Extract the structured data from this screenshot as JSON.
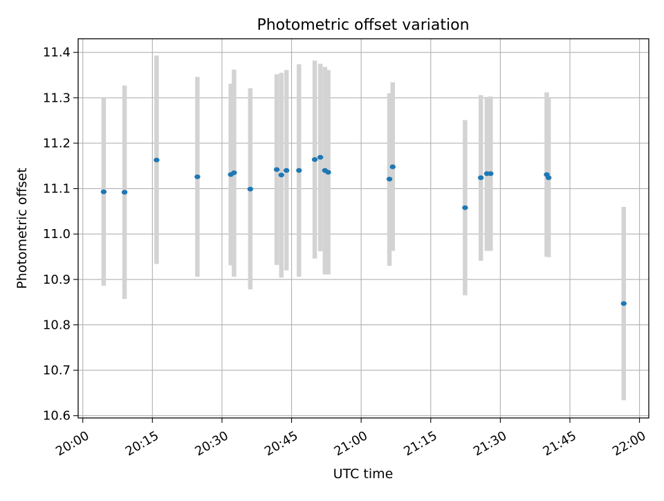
{
  "chart_data": {
    "type": "scatter",
    "title": "Photometric offset variation",
    "xlabel": "UTC time",
    "ylabel": "Photometric offset",
    "xlim": [
      "19:59",
      "22:02"
    ],
    "ylim": [
      10.595,
      11.43
    ],
    "x_ticks": [
      "20:00",
      "20:15",
      "20:30",
      "20:45",
      "21:00",
      "21:15",
      "21:30",
      "21:45",
      "22:00"
    ],
    "y_ticks": [
      "10.6",
      "10.7",
      "10.8",
      "10.9",
      "11.0",
      "11.1",
      "11.2",
      "11.3",
      "11.4"
    ],
    "grid": true,
    "point_color": "#1f77b4",
    "errorbar_color": "#d3d3d3",
    "points": [
      {
        "x": "20:04:30",
        "y": 11.093,
        "ylow": 10.886,
        "yhigh": 11.3
      },
      {
        "x": "20:09:00",
        "y": 11.092,
        "ylow": 10.857,
        "yhigh": 11.327
      },
      {
        "x": "20:15:54",
        "y": 11.163,
        "ylow": 10.934,
        "yhigh": 11.393
      },
      {
        "x": "20:24:42",
        "y": 11.126,
        "ylow": 10.906,
        "yhigh": 11.346
      },
      {
        "x": "20:31:54",
        "y": 11.131,
        "ylow": 10.931,
        "yhigh": 11.331
      },
      {
        "x": "20:32:36",
        "y": 11.135,
        "ylow": 10.906,
        "yhigh": 11.362
      },
      {
        "x": "20:36:06",
        "y": 11.099,
        "ylow": 10.878,
        "yhigh": 11.321
      },
      {
        "x": "20:41:48",
        "y": 11.142,
        "ylow": 10.932,
        "yhigh": 11.352
      },
      {
        "x": "20:42:48",
        "y": 11.13,
        "ylow": 10.904,
        "yhigh": 11.355
      },
      {
        "x": "20:43:54",
        "y": 11.14,
        "ylow": 10.92,
        "yhigh": 11.361
      },
      {
        "x": "20:46:36",
        "y": 11.14,
        "ylow": 10.906,
        "yhigh": 11.374
      },
      {
        "x": "20:50:00",
        "y": 11.164,
        "ylow": 10.946,
        "yhigh": 11.382
      },
      {
        "x": "20:51:12",
        "y": 11.169,
        "ylow": 10.962,
        "yhigh": 11.375
      },
      {
        "x": "20:52:12",
        "y": 11.14,
        "ylow": 10.911,
        "yhigh": 11.368
      },
      {
        "x": "20:52:54",
        "y": 11.136,
        "ylow": 10.911,
        "yhigh": 11.361
      },
      {
        "x": "21:06:06",
        "y": 11.121,
        "ylow": 10.93,
        "yhigh": 11.31
      },
      {
        "x": "21:06:48",
        "y": 11.148,
        "ylow": 10.963,
        "yhigh": 11.334
      },
      {
        "x": "21:22:24",
        "y": 11.058,
        "ylow": 10.865,
        "yhigh": 11.251
      },
      {
        "x": "21:25:48",
        "y": 11.124,
        "ylow": 10.941,
        "yhigh": 11.306
      },
      {
        "x": "21:27:06",
        "y": 11.133,
        "ylow": 10.963,
        "yhigh": 11.302
      },
      {
        "x": "21:27:54",
        "y": 11.133,
        "ylow": 10.963,
        "yhigh": 11.303
      },
      {
        "x": "21:40:00",
        "y": 11.131,
        "ylow": 10.95,
        "yhigh": 11.312
      },
      {
        "x": "21:40:24",
        "y": 11.124,
        "ylow": 10.949,
        "yhigh": 11.3
      },
      {
        "x": "21:56:36",
        "y": 10.847,
        "ylow": 10.634,
        "yhigh": 11.06
      }
    ]
  }
}
